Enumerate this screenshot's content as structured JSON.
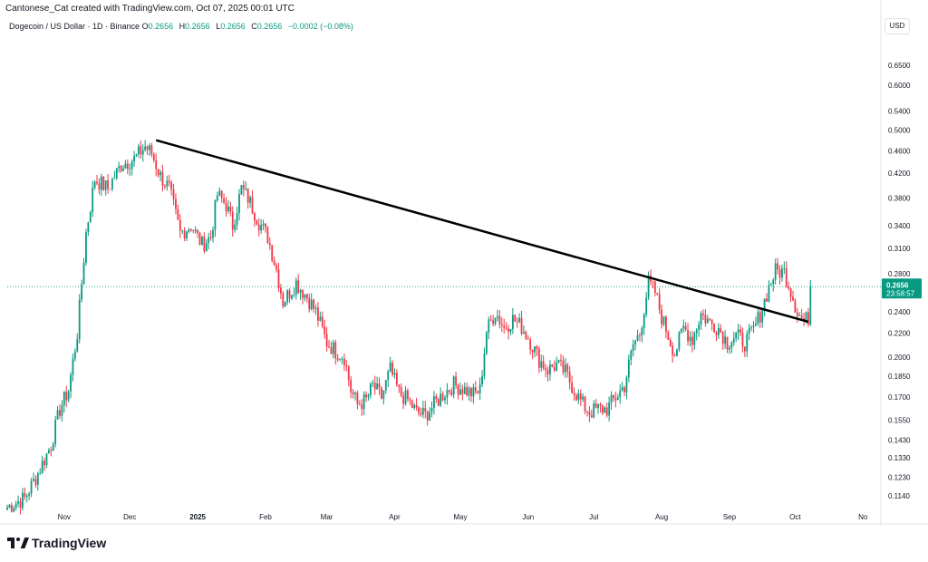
{
  "header": {
    "credit": "Cantonese_Cat created with TradingView.com, Oct 07, 2025 00:01 UTC",
    "symbol": "Dogecoin / US Dollar · 1D · Binance",
    "o_label": "O",
    "o_value": "0.2656",
    "h_label": "H",
    "h_value": "0.2656",
    "l_label": "L",
    "l_value": "0.2656",
    "c_label": "C",
    "c_value": "0.2656",
    "change": "−0.0002 (−0.08%)"
  },
  "currency": "USD",
  "price_tag": {
    "price": "0.2656",
    "countdown": "23:58:57"
  },
  "logo": {
    "text": "TradingView"
  },
  "colors": {
    "up": "#089981",
    "down": "#f23645",
    "trendline": "#000000",
    "last_price": "#089981"
  },
  "chart_data": {
    "type": "candlestick",
    "scale": "log",
    "ylim": [
      0.108,
      0.72
    ],
    "y_ticks": [
      "0.6500",
      "0.6000",
      "0.5400",
      "0.5000",
      "0.4600",
      "0.4200",
      "0.3800",
      "0.3400",
      "0.3100",
      "0.2800",
      "0.2400",
      "0.2200",
      "0.2000",
      "0.1850",
      "0.1700",
      "0.1550",
      "0.1430",
      "0.1330",
      "0.1230",
      "0.1140"
    ],
    "x_ticks": [
      "Nov",
      "Dec",
      "2025",
      "Feb",
      "Mar",
      "Apr",
      "May",
      "Jun",
      "Jul",
      "Aug",
      "Sep",
      "Oct",
      "No"
    ],
    "x_tick_index": [
      26,
      56,
      87,
      118,
      146,
      177,
      207,
      238,
      268,
      299,
      330,
      360,
      391
    ],
    "bar_count": 368,
    "last_price": 0.2656,
    "close_path": [
      [
        0,
        0.109
      ],
      [
        8,
        0.113
      ],
      [
        14,
        0.125
      ],
      [
        20,
        0.14
      ],
      [
        24,
        0.162
      ],
      [
        28,
        0.175
      ],
      [
        32,
        0.22
      ],
      [
        36,
        0.33
      ],
      [
        40,
        0.41
      ],
      [
        46,
        0.395
      ],
      [
        52,
        0.435
      ],
      [
        58,
        0.445
      ],
      [
        63,
        0.468
      ],
      [
        66,
        0.455
      ],
      [
        70,
        0.415
      ],
      [
        74,
        0.395
      ],
      [
        79,
        0.33
      ],
      [
        84,
        0.34
      ],
      [
        89,
        0.315
      ],
      [
        93,
        0.325
      ],
      [
        96,
        0.385
      ],
      [
        100,
        0.37
      ],
      [
        103,
        0.34
      ],
      [
        107,
        0.395
      ],
      [
        110,
        0.38
      ],
      [
        115,
        0.345
      ],
      [
        119,
        0.325
      ],
      [
        123,
        0.285
      ],
      [
        126,
        0.25
      ],
      [
        132,
        0.27
      ],
      [
        137,
        0.255
      ],
      [
        141,
        0.24
      ],
      [
        146,
        0.212
      ],
      [
        150,
        0.205
      ],
      [
        154,
        0.2
      ],
      [
        157,
        0.175
      ],
      [
        160,
        0.165
      ],
      [
        164,
        0.168
      ],
      [
        167,
        0.178
      ],
      [
        171,
        0.17
      ],
      [
        175,
        0.19
      ],
      [
        179,
        0.173
      ],
      [
        183,
        0.168
      ],
      [
        187,
        0.16
      ],
      [
        191,
        0.158
      ],
      [
        195,
        0.165
      ],
      [
        199,
        0.172
      ],
      [
        204,
        0.179
      ],
      [
        208,
        0.176
      ],
      [
        213,
        0.172
      ],
      [
        216,
        0.175
      ],
      [
        219,
        0.222
      ],
      [
        223,
        0.24
      ],
      [
        227,
        0.225
      ],
      [
        231,
        0.233
      ],
      [
        235,
        0.226
      ],
      [
        239,
        0.213
      ],
      [
        243,
        0.198
      ],
      [
        247,
        0.19
      ],
      [
        251,
        0.194
      ],
      [
        255,
        0.188
      ],
      [
        259,
        0.175
      ],
      [
        263,
        0.165
      ],
      [
        266,
        0.16
      ],
      [
        270,
        0.162
      ],
      [
        274,
        0.162
      ],
      [
        278,
        0.17
      ],
      [
        282,
        0.178
      ],
      [
        286,
        0.21
      ],
      [
        289,
        0.22
      ],
      [
        293,
        0.27
      ],
      [
        296,
        0.26
      ],
      [
        299,
        0.235
      ],
      [
        302,
        0.218
      ],
      [
        305,
        0.203
      ],
      [
        309,
        0.225
      ],
      [
        313,
        0.215
      ],
      [
        317,
        0.238
      ],
      [
        321,
        0.23
      ],
      [
        325,
        0.225
      ],
      [
        329,
        0.212
      ],
      [
        333,
        0.218
      ],
      [
        337,
        0.212
      ],
      [
        341,
        0.223
      ],
      [
        344,
        0.238
      ],
      [
        348,
        0.265
      ],
      [
        351,
        0.283
      ],
      [
        355,
        0.282
      ],
      [
        358,
        0.262
      ],
      [
        361,
        0.24
      ],
      [
        364,
        0.23
      ],
      [
        367,
        0.237
      ],
      [
        370,
        0.262
      ],
      [
        373,
        0.2656
      ]
    ],
    "trendline": [
      [
        68,
        0.48
      ],
      [
        366,
        0.2305
      ]
    ]
  }
}
